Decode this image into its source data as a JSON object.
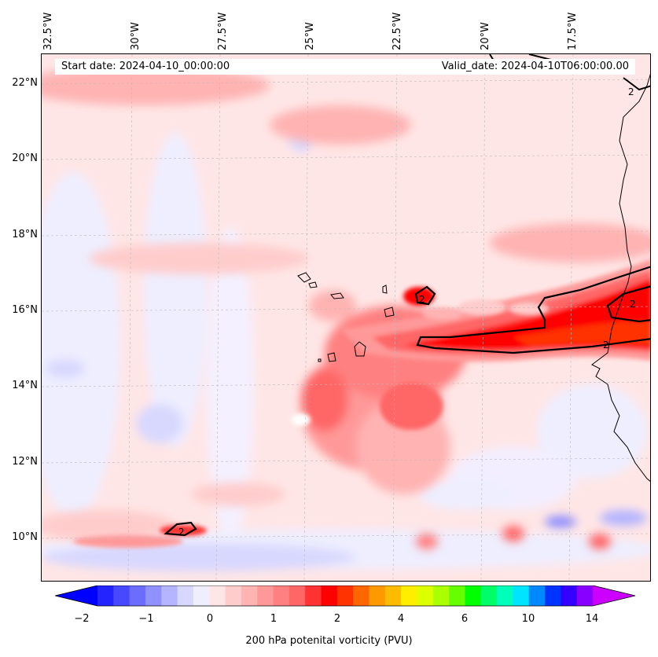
{
  "map": {
    "start_date": "Start date: 2024-04-10_00:00:00",
    "valid_date": "Valid_date: 2024-04-10T06:00:00.00",
    "lon_labels": [
      "32.5°W",
      "30°W",
      "27.5°W",
      "25°W",
      "22.5°W",
      "20°W",
      "17.5°W"
    ],
    "lat_labels": [
      "22°N",
      "20°N",
      "18°N",
      "16°N",
      "14°N",
      "12°N",
      "10°N"
    ],
    "contour_value_label": "2"
  },
  "colorbar": {
    "title": "200 hPa potenital vorticity (PVU)",
    "ticks": [
      "−2",
      "−1",
      "0",
      "1",
      "2",
      "4",
      "6",
      "10",
      "14"
    ],
    "colors": [
      "#0000ff",
      "#2424ff",
      "#4848ff",
      "#6c6cff",
      "#9090ff",
      "#b4b4ff",
      "#d8d8ff",
      "#eeeeff",
      "#ffe6e6",
      "#ffcccc",
      "#ffb3b3",
      "#ff9999",
      "#ff8080",
      "#ff6666",
      "#ff3333",
      "#ff0000",
      "#ff3300",
      "#ff6600",
      "#ff9900",
      "#ffbb00",
      "#ffee00",
      "#ddff00",
      "#aaff00",
      "#66ff00",
      "#00ff00",
      "#00ff66",
      "#00ffbb",
      "#00e5ff",
      "#0088ff",
      "#0033ff",
      "#3300ff",
      "#8800ff",
      "#cc00ff"
    ]
  }
}
